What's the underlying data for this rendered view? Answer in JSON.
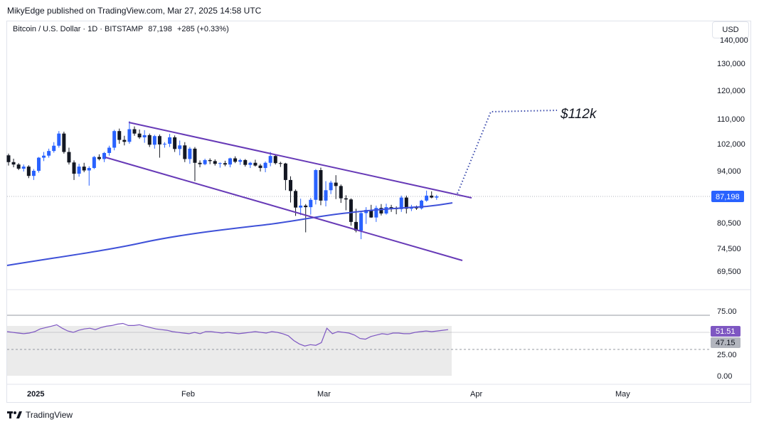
{
  "header": {
    "credit": "MikyEdge published on TradingView.com, Mar 27, 2025 14:58 UTC",
    "symbol": "Bitcoin / U.S. Dollar · 1D · BITSTAMP",
    "last": "87,198",
    "change": "+285 (+0.33%)",
    "currency_button": "USD"
  },
  "footer": {
    "brand": "TradingView"
  },
  "colors": {
    "up": "#2962ff",
    "down": "#131722",
    "channel": "#673ab7",
    "ma": "#3f51d8",
    "rsi": "#7e57c2",
    "price_label": "#2962ff"
  },
  "chart_data": [
    {
      "type": "candlestick",
      "symbol": "Bitcoin / U.S. Dollar",
      "interval": "1D",
      "exchange": "BITSTAMP",
      "y_ticks": [
        69500,
        74500,
        80500,
        87198,
        94000,
        102000,
        110000,
        120000,
        130000
      ],
      "y_tick_labels": [
        "69,500",
        "74,500",
        "80,500",
        "87,198",
        "94,000",
        "102,000",
        "110,000",
        "120,000",
        "130,000"
      ],
      "last_price_label": "87,198",
      "x_tick_labels": [
        "2025",
        "Feb",
        "Mar",
        "Apr",
        "May"
      ],
      "annotation": "$112k",
      "candles_ohlc": [
        [
          98500,
          99000,
          95500,
          96500
        ],
        [
          96500,
          97500,
          95000,
          95800
        ],
        [
          95800,
          96200,
          94200,
          94600
        ],
        [
          94600,
          95800,
          93800,
          95200
        ],
        [
          95200,
          95600,
          92000,
          92600
        ],
        [
          92600,
          94500,
          91500,
          94000
        ],
        [
          94000,
          98000,
          93500,
          97800
        ],
        [
          97800,
          99500,
          96800,
          98400
        ],
        [
          98400,
          100500,
          97800,
          99800
        ],
        [
          99800,
          102500,
          99300,
          101400
        ],
        [
          101400,
          106000,
          100800,
          105200
        ],
        [
          105200,
          105800,
          99000,
          99500
        ],
        [
          99500,
          100800,
          95800,
          96400
        ],
        [
          96400,
          97000,
          91500,
          93200
        ],
        [
          93200,
          96000,
          92400,
          95200
        ],
        [
          95200,
          96300,
          93600,
          94100
        ],
        [
          94100,
          95300,
          90000,
          94800
        ],
        [
          94800,
          98300,
          94500,
          98000
        ],
        [
          98000,
          98800,
          97000,
          97400
        ],
        [
          97400,
          99500,
          96500,
          99200
        ],
        [
          99200,
          101400,
          98400,
          100800
        ],
        [
          100800,
          106400,
          100000,
          106000
        ],
        [
          106000,
          106800,
          102000,
          103200
        ],
        [
          103200,
          104500,
          101500,
          102600
        ],
        [
          102600,
          109200,
          102000,
          106600
        ],
        [
          106600,
          107500,
          104500,
          105200
        ],
        [
          105200,
          106500,
          103500,
          104000
        ],
        [
          104000,
          106300,
          102300,
          104700
        ],
        [
          104700,
          105200,
          101000,
          101700
        ],
        [
          101700,
          104800,
          100500,
          104400
        ],
        [
          104400,
          104900,
          97800,
          101800
        ],
        [
          101800,
          102500,
          100800,
          102000
        ],
        [
          102000,
          105100,
          101000,
          104000
        ],
        [
          104000,
          104600,
          99500,
          100400
        ],
        [
          100400,
          103000,
          98500,
          101500
        ],
        [
          101500,
          102500,
          96500,
          97400
        ],
        [
          97400,
          101000,
          96000,
          100500
        ],
        [
          100500,
          101000,
          91200,
          96300
        ],
        [
          96300,
          97000,
          95000,
          95900
        ],
        [
          95900,
          97500,
          95600,
          97100
        ],
        [
          97100,
          97600,
          95900,
          96800
        ],
        [
          96800,
          97300,
          95500,
          96000
        ],
        [
          96000,
          96400,
          94900,
          96200
        ],
        [
          96200,
          96900,
          95300,
          95800
        ],
        [
          95800,
          97800,
          95000,
          97600
        ],
        [
          97600,
          98200,
          96200,
          96600
        ],
        [
          96600,
          97500,
          95700,
          97100
        ],
        [
          97100,
          97400,
          95200,
          95700
        ],
        [
          95700,
          96600,
          94800,
          96300
        ],
        [
          96300,
          97200,
          95200,
          95500
        ],
        [
          95500,
          96000,
          93800,
          94800
        ],
        [
          94800,
          96700,
          93600,
          96300
        ],
        [
          96300,
          99500,
          95300,
          98300
        ],
        [
          98300,
          98700,
          95800,
          96200
        ],
        [
          96200,
          96600,
          95100,
          96100
        ],
        [
          96100,
          96300,
          88800,
          91500
        ],
        [
          91500,
          92500,
          85600,
          88600
        ],
        [
          88600,
          89000,
          82200,
          84300
        ],
        [
          84300,
          86600,
          82400,
          84800
        ],
        [
          84800,
          85200,
          78200,
          84400
        ],
        [
          84400,
          86800,
          82500,
          86300
        ],
        [
          86300,
          94500,
          85100,
          94200
        ],
        [
          94200,
          94900,
          84900,
          86100
        ],
        [
          86100,
          91200,
          84600,
          88800
        ],
        [
          88800,
          91300,
          87800,
          90800
        ],
        [
          90800,
          92800,
          86500,
          89900
        ],
        [
          89900,
          90300,
          85500,
          86700
        ],
        [
          86700,
          87500,
          83600,
          86400
        ],
        [
          86400,
          86700,
          79800,
          80700
        ],
        [
          80700,
          84000,
          78200,
          78600
        ],
        [
          78600,
          83500,
          76600,
          82900
        ],
        [
          82900,
          84400,
          80200,
          83700
        ],
        [
          83700,
          85000,
          81700,
          81800
        ],
        [
          81800,
          84800,
          80700,
          84200
        ],
        [
          84200,
          85200,
          82300,
          82800
        ],
        [
          82800,
          85300,
          82500,
          84400
        ],
        [
          84400,
          85000,
          83200,
          84100
        ],
        [
          84100,
          84600,
          82600,
          83900
        ],
        [
          83900,
          87400,
          83200,
          86900
        ],
        [
          86900,
          87400,
          82800,
          84000
        ],
        [
          84000,
          85000,
          83400,
          84300
        ],
        [
          84300,
          84800,
          83700,
          84100
        ],
        [
          84100,
          86300,
          83800,
          86100
        ],
        [
          86100,
          88700,
          85800,
          87400
        ],
        [
          87400,
          88500,
          86700,
          86900
        ],
        [
          86900,
          87600,
          86300,
          87198
        ]
      ]
    },
    {
      "type": "line",
      "series": [
        {
          "values": [
            51,
            50,
            49,
            48,
            49,
            51,
            55,
            57,
            59,
            61,
            56,
            52,
            50,
            53,
            55,
            56,
            54,
            57,
            59,
            60,
            62,
            63,
            60,
            60,
            61,
            59,
            57,
            55,
            54,
            53,
            51,
            50,
            49,
            48,
            50,
            48,
            51,
            51,
            50,
            49,
            50,
            49,
            48,
            49,
            50,
            51,
            50,
            49,
            51,
            50,
            48,
            45,
            38,
            33,
            30,
            32,
            31,
            35,
            56,
            48,
            51,
            50,
            49,
            46,
            41,
            40,
            44,
            46,
            48,
            47,
            49,
            49,
            48,
            48,
            50,
            51,
            52,
            51,
            52,
            53,
            54
          ]
        }
      ],
      "y_tick_labels": [
        "75.00",
        "25.00",
        "0.00"
      ],
      "value_labels": [
        "51.51",
        "47.15"
      ]
    }
  ]
}
